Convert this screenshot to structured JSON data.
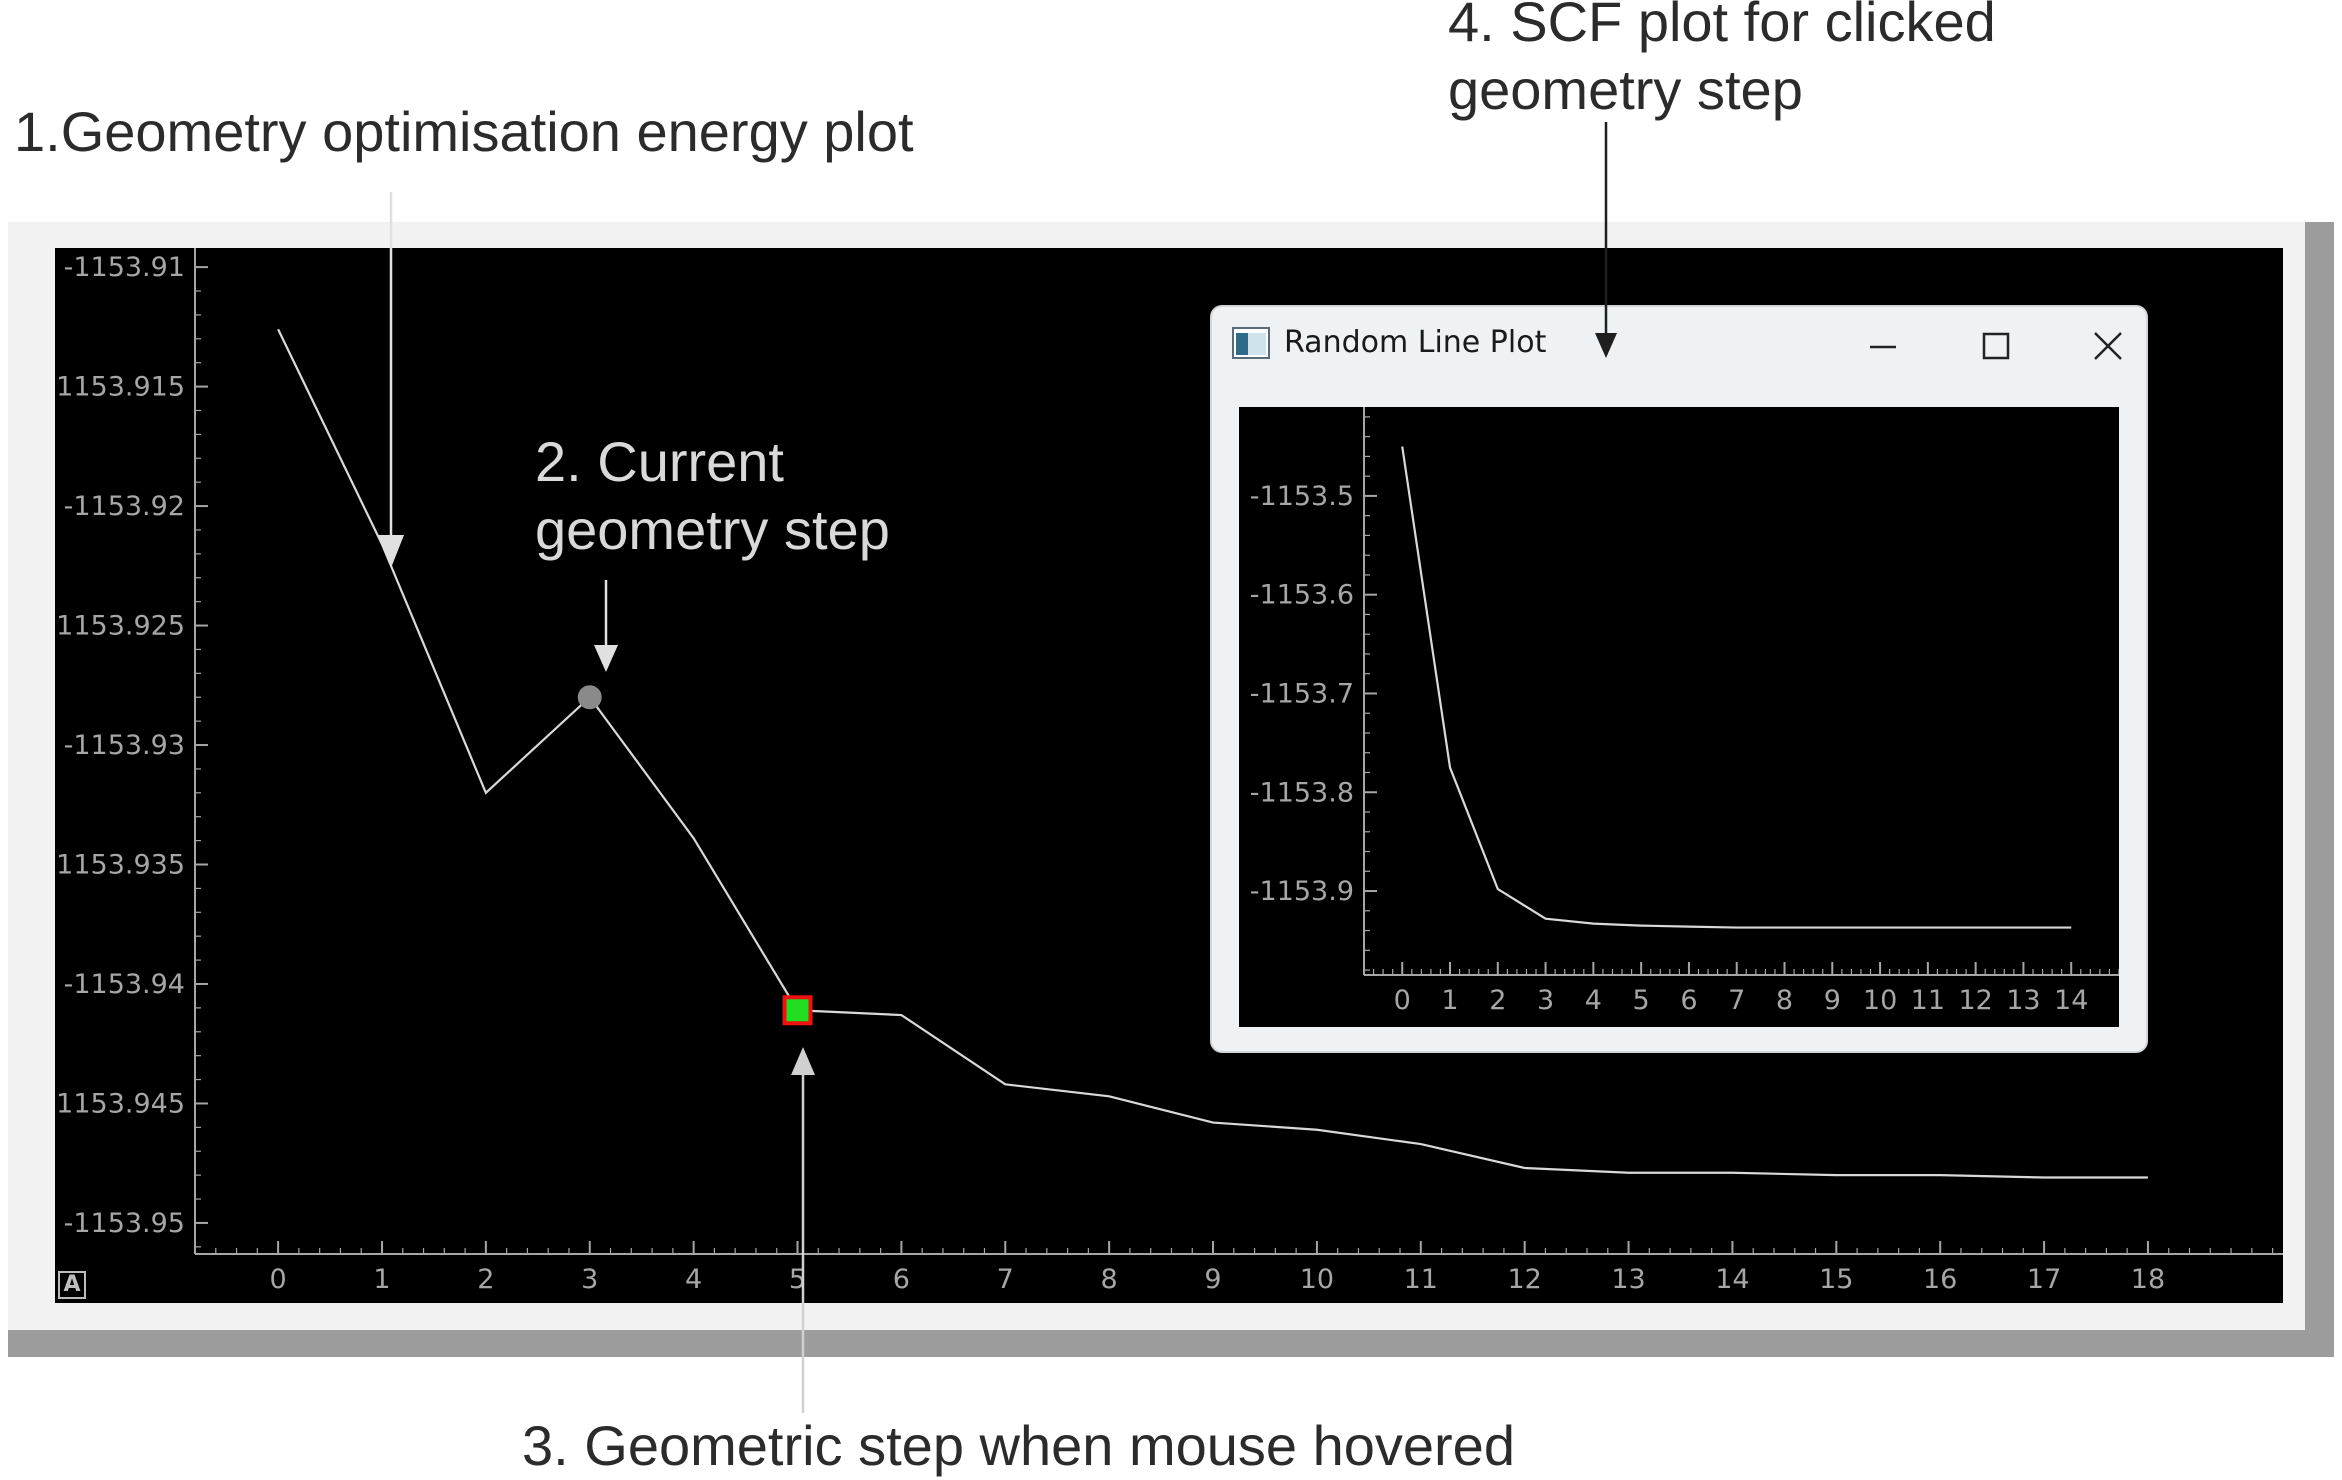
{
  "annotations": {
    "energy_plot": "1.Geometry optimisation energy plot",
    "current_step_line1": "2. Current",
    "current_step_line2": "geometry step",
    "hover_step": "3. Geometric step when mouse hovered",
    "scf_plot_line1": "4. SCF plot for clicked",
    "scf_plot_line2": "geometry step"
  },
  "main_plot": {
    "autoscale_button_label": "A",
    "current_step_index": 3,
    "hovered_step_index": 5
  },
  "scf_window": {
    "title": "Random Line Plot",
    "icon": "window-app-icon",
    "buttons": [
      "minimize-icon",
      "maximize-icon",
      "close-icon"
    ]
  },
  "colors": {
    "plot_background": "#000000",
    "line": "#d9d9d9",
    "axis": "#a6a6a6",
    "hover_marker_fill": "#22dd22",
    "hover_marker_border": "#ee1111",
    "current_marker": "#8a8a8a"
  },
  "chart_data": [
    {
      "type": "line",
      "title": "",
      "xlabel": "",
      "ylabel": "",
      "x": [
        0,
        1,
        2,
        3,
        4,
        5,
        6,
        7,
        8,
        9,
        10,
        11,
        12,
        13,
        14,
        15,
        16,
        17,
        18
      ],
      "values": [
        -1153.9126,
        -1153.9216,
        -1153.932,
        -1153.928,
        -1153.9339,
        -1153.9411,
        -1153.9413,
        -1153.9442,
        -1153.9447,
        -1153.9458,
        -1153.9461,
        -1153.9467,
        -1153.9477,
        -1153.9479,
        -1153.9479,
        -1153.948,
        -1153.948,
        -1153.9481,
        -1153.9481
      ],
      "xlim": [
        -0.8,
        19.3
      ],
      "ylim": [
        -1153.9513,
        -1153.9092
      ],
      "x_ticks": [
        "0",
        "1",
        "2",
        "3",
        "4",
        "5",
        "6",
        "7",
        "8",
        "9",
        "10",
        "11",
        "12",
        "13",
        "14",
        "15",
        "16",
        "17",
        "18"
      ],
      "y_ticks": [
        -1153.91,
        -1153.915,
        -1153.92,
        -1153.925,
        -1153.93,
        -1153.935,
        -1153.94,
        -1153.945,
        -1153.95
      ],
      "y_tick_labels": [
        "-1153.91",
        "-1153.915",
        "-1153.92",
        "-1153.925",
        "-1153.93",
        "-1153.935",
        "-1153.94",
        "-1153.945",
        "-1153.95"
      ],
      "grid": false,
      "legend": "none"
    },
    {
      "type": "line",
      "title": "Random Line Plot",
      "xlabel": "",
      "ylabel": "",
      "x": [
        0,
        1,
        2,
        3,
        4,
        5,
        6,
        7,
        8,
        9,
        10,
        11,
        12,
        13,
        14
      ],
      "values": [
        -1153.45,
        -1153.775,
        -1153.898,
        -1153.928,
        -1153.933,
        -1153.935,
        -1153.936,
        -1153.937,
        -1153.937,
        -1153.937,
        -1153.937,
        -1153.937,
        -1153.937,
        -1153.937,
        -1153.937
      ],
      "xlim": [
        -0.8,
        15.0
      ],
      "ylim": [
        -1153.985,
        -1153.41
      ],
      "x_ticks": [
        "0",
        "1",
        "2",
        "3",
        "4",
        "5",
        "6",
        "7",
        "8",
        "9",
        "10",
        "11",
        "12",
        "13",
        "14"
      ],
      "y_ticks": [
        -1153.5,
        -1153.6,
        -1153.7,
        -1153.8,
        -1153.9
      ],
      "y_tick_labels": [
        "-1153.5",
        "-1153.6",
        "-1153.7",
        "-1153.8",
        "-1153.9"
      ],
      "grid": false,
      "legend": "none"
    }
  ]
}
